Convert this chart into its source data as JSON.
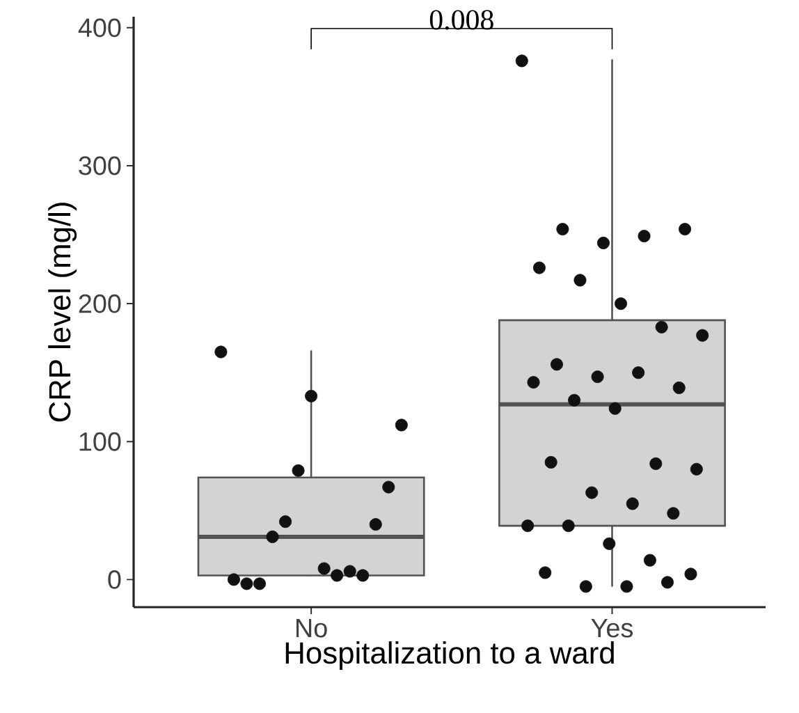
{
  "chart_data": {
    "type": "box",
    "xlabel": "Hospitalization to a ward",
    "ylabel": "CRP level (mg/l)",
    "categories": [
      "No",
      "Yes"
    ],
    "ylim": [
      -20,
      408
    ],
    "yticks": [
      0,
      100,
      200,
      300,
      400
    ],
    "grid": false,
    "annotations": [
      "0.008"
    ],
    "marker": "circle",
    "series": [
      {
        "color": "#d3d3d5",
        "boxes": [
          {
            "low": 3,
            "q1": 3,
            "median": 31,
            "q3": 74,
            "high": 166
          },
          {
            "low": -5,
            "q1": 39,
            "median": 127,
            "q3": 188,
            "high": 377
          }
        ]
      },
      {
        "type": "scatter",
        "color": "#111111",
        "x": [
          "No",
          "No",
          "No",
          "No",
          "No",
          "No",
          "No",
          "No",
          "No",
          "No",
          "No",
          "No",
          "No",
          "No",
          "No",
          "Yes",
          "Yes",
          "Yes",
          "Yes",
          "Yes",
          "Yes",
          "Yes",
          "Yes",
          "Yes",
          "Yes",
          "Yes",
          "Yes",
          "Yes",
          "Yes",
          "Yes",
          "Yes",
          "Yes",
          "Yes",
          "Yes",
          "Yes",
          "Yes",
          "Yes",
          "Yes",
          "Yes",
          "Yes",
          "Yes",
          "Yes",
          "Yes",
          "Yes",
          "Yes",
          "Yes",
          "Yes"
        ],
        "values": [
          165,
          133,
          112,
          79,
          67,
          42,
          40,
          31,
          3,
          -3,
          6,
          -3,
          3,
          0,
          8,
          376,
          254,
          244,
          249,
          254,
          226,
          217,
          200,
          183,
          177,
          156,
          147,
          150,
          139,
          143,
          130,
          124,
          84,
          80,
          85,
          63,
          55,
          48,
          39,
          39,
          26,
          14,
          4,
          5,
          -5,
          -5,
          -2
        ]
      }
    ]
  }
}
